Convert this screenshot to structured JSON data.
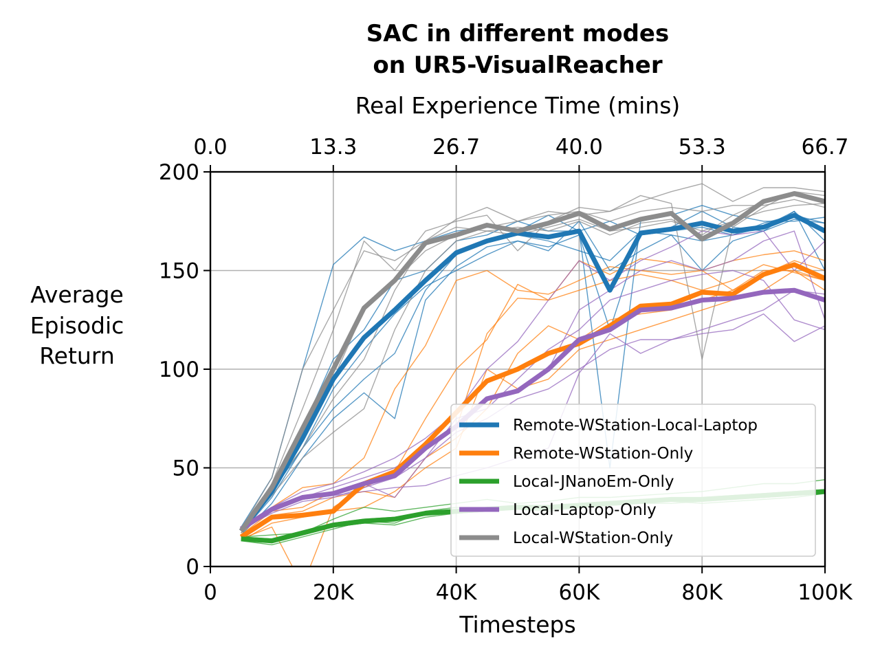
{
  "chart_data": {
    "type": "line",
    "title_lines": [
      "SAC in different modes",
      "on UR5-VisualReacher"
    ],
    "xlabel": "Timesteps",
    "ylabel_lines": [
      "Average",
      "Episodic",
      "Return"
    ],
    "top_xlabel": "Real Experience Time (mins)",
    "xlim": [
      0,
      100000
    ],
    "ylim": [
      0,
      200
    ],
    "x_ticks": [
      0,
      20000,
      40000,
      60000,
      80000,
      100000
    ],
    "x_tick_labels": [
      "0",
      "20K",
      "40K",
      "60K",
      "80K",
      "100K"
    ],
    "y_ticks": [
      0,
      50,
      100,
      150,
      200
    ],
    "y_tick_labels": [
      "0",
      "50",
      "100",
      "150",
      "200"
    ],
    "top_ticks": [
      0,
      20000,
      40000,
      60000,
      80000,
      100000
    ],
    "top_tick_labels": [
      "0.0",
      "13.3",
      "26.7",
      "40.0",
      "53.3",
      "66.7"
    ],
    "grid": true,
    "legend_position": "lower-right",
    "x": [
      5000,
      10000,
      15000,
      20000,
      25000,
      30000,
      35000,
      40000,
      45000,
      50000,
      55000,
      60000,
      65000,
      70000,
      75000,
      80000,
      85000,
      90000,
      95000,
      100000
    ],
    "series": [
      {
        "name": "Remote-WStation-Local-Laptop",
        "color": "#1f77b4",
        "values": [
          18,
          38,
          65,
          95,
          116,
          130,
          145,
          159,
          165,
          169,
          167,
          170,
          140,
          169,
          171,
          174,
          170,
          172,
          178,
          170
        ],
        "runs": [
          [
            20,
            45,
            100,
            153,
            167,
            160,
            165,
            170,
            172,
            170,
            178,
            170,
            50,
            175,
            178,
            183,
            178,
            175,
            175,
            177
          ],
          [
            19,
            40,
            70,
            105,
            120,
            145,
            150,
            165,
            168,
            175,
            170,
            170,
            175,
            168,
            172,
            180,
            172,
            170,
            176,
            174
          ],
          [
            17,
            35,
            60,
            80,
            95,
            108,
            140,
            158,
            165,
            168,
            165,
            160,
            155,
            170,
            168,
            150,
            165,
            170,
            180,
            165
          ],
          [
            18,
            38,
            60,
            90,
            110,
            128,
            142,
            150,
            158,
            165,
            162,
            168,
            120,
            168,
            170,
            172,
            168,
            172,
            180,
            150
          ],
          [
            16,
            32,
            55,
            75,
            88,
            75,
            135,
            152,
            162,
            165,
            160,
            175,
            150,
            160,
            168,
            165,
            168,
            174,
            178,
            174
          ]
        ]
      },
      {
        "name": "Remote-WStation-Only",
        "color": "#ff7f0e",
        "values": [
          15,
          25,
          26,
          28,
          42,
          48,
          62,
          78,
          94,
          100,
          108,
          113,
          122,
          132,
          133,
          139,
          138,
          148,
          153,
          146
        ],
        "runs": [
          [
            17,
            30,
            40,
            42,
            55,
            90,
            112,
            145,
            150,
            140,
            138,
            145,
            152,
            150,
            148,
            150,
            155,
            158,
            160,
            155
          ],
          [
            14,
            20,
            -10,
            30,
            40,
            48,
            75,
            100,
            115,
            143,
            135,
            155,
            148,
            156,
            154,
            150,
            140,
            150,
            150,
            140
          ],
          [
            16,
            28,
            30,
            38,
            42,
            45,
            62,
            70,
            118,
            136,
            135,
            140,
            145,
            148,
            145,
            140,
            145,
            153,
            149,
            145
          ],
          [
            15,
            26,
            28,
            35,
            38,
            35,
            55,
            65,
            80,
            108,
            122,
            115,
            125,
            128,
            130,
            135,
            140,
            148,
            155,
            150
          ],
          [
            13,
            22,
            25,
            28,
            30,
            38,
            50,
            60,
            100,
            90,
            95,
            110,
            115,
            120,
            125,
            130,
            135,
            140,
            150,
            145
          ]
        ]
      },
      {
        "name": "Local-JNanoEm-Only",
        "color": "#2ca02c",
        "values": [
          14,
          13,
          17,
          21,
          23,
          24,
          27,
          28,
          29,
          30,
          30,
          31,
          32,
          33,
          34,
          34,
          35,
          36,
          37,
          38
        ],
        "runs": [
          [
            15,
            16,
            17,
            24,
            30,
            28,
            30,
            32,
            34,
            32,
            33,
            35,
            35,
            36,
            37,
            38,
            40,
            42,
            42,
            44
          ],
          [
            14,
            12,
            16,
            20,
            22,
            24,
            26,
            27,
            28,
            30,
            30,
            30,
            31,
            32,
            33,
            34,
            35,
            35,
            37,
            38
          ],
          [
            13,
            11,
            15,
            19,
            23,
            22,
            28,
            30,
            29,
            31,
            29,
            32,
            33,
            34,
            33,
            32,
            33,
            34,
            35,
            37
          ],
          [
            15,
            14,
            18,
            22,
            24,
            25,
            27,
            28,
            30,
            31,
            30,
            31,
            32,
            33,
            34,
            35,
            36,
            37,
            38,
            39
          ],
          [
            14,
            13,
            16,
            20,
            22,
            21,
            25,
            27,
            28,
            29,
            28,
            30,
            31,
            32,
            32,
            33,
            34,
            35,
            36,
            37
          ]
        ]
      },
      {
        "name": "Local-Laptop-Only",
        "color": "#9467bd",
        "values": [
          19,
          29,
          35,
          37,
          42,
          46,
          60,
          71,
          85,
          89,
          100,
          115,
          120,
          130,
          131,
          135,
          136,
          139,
          140,
          135
        ],
        "runs": [
          [
            20,
            30,
            38,
            42,
            48,
            55,
            65,
            78,
            100,
            114,
            135,
            155,
            145,
            155,
            162,
            170,
            168,
            170,
            150,
            165
          ],
          [
            19,
            28,
            35,
            40,
            45,
            50,
            60,
            70,
            85,
            90,
            100,
            130,
            140,
            150,
            155,
            150,
            155,
            165,
            170,
            125
          ],
          [
            18,
            30,
            35,
            38,
            42,
            35,
            55,
            75,
            80,
            95,
            110,
            120,
            135,
            140,
            145,
            148,
            150,
            145,
            125,
            120
          ],
          [
            19,
            27,
            33,
            35,
            40,
            45,
            55,
            68,
            75,
            85,
            90,
            100,
            110,
            115,
            115,
            120,
            125,
            130,
            140,
            138
          ],
          [
            20,
            29,
            34,
            36,
            38,
            40,
            41,
            46,
            50,
            55,
            60,
            98,
            118,
            108,
            115,
            118,
            120,
            128,
            114,
            122
          ]
        ]
      },
      {
        "name": "Local-WStation-Only",
        "color": "#8c8c8c",
        "values": [
          18,
          40,
          70,
          100,
          131,
          145,
          164,
          168,
          173,
          170,
          174,
          179,
          171,
          176,
          179,
          166,
          174,
          185,
          189,
          185
        ],
        "runs": [
          [
            19,
            45,
            100,
            130,
            160,
            155,
            165,
            176,
            182,
            175,
            180,
            178,
            180,
            185,
            190,
            194,
            185,
            192,
            192,
            190
          ],
          [
            18,
            42,
            80,
            120,
            165,
            150,
            170,
            175,
            178,
            160,
            175,
            182,
            180,
            188,
            184,
            105,
            172,
            182,
            190,
            188
          ],
          [
            17,
            38,
            65,
            95,
            130,
            145,
            160,
            168,
            172,
            175,
            178,
            180,
            175,
            180,
            182,
            180,
            183,
            183,
            186,
            182
          ],
          [
            18,
            40,
            60,
            85,
            105,
            140,
            165,
            172,
            170,
            168,
            172,
            176,
            170,
            172,
            175,
            170,
            175,
            180,
            183,
            184
          ],
          [
            18,
            36,
            55,
            68,
            80,
            120,
            150,
            165,
            170,
            172,
            170,
            175,
            168,
            174,
            176,
            168,
            178,
            185,
            190,
            186
          ]
        ]
      }
    ]
  }
}
